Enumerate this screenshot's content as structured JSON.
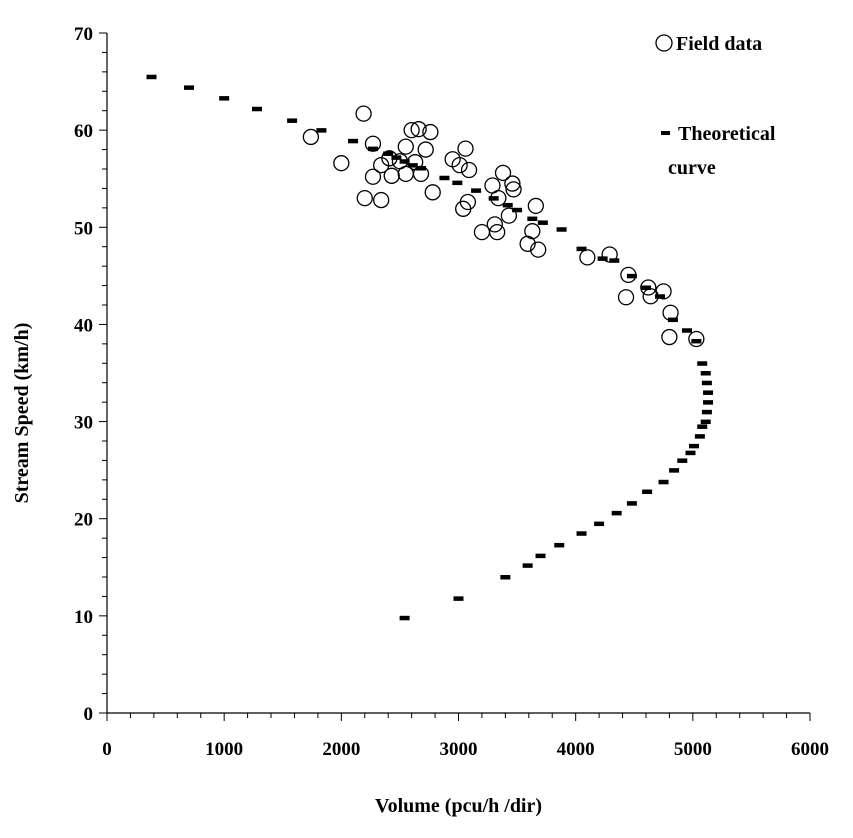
{
  "chart_data": {
    "type": "scatter",
    "xlabel": "Volume (pcu/h /dir)",
    "ylabel": "Stream Speed (km/h)",
    "xlim": [
      0,
      6000
    ],
    "ylim": [
      0,
      70
    ],
    "x_ticks": [
      0,
      1000,
      2000,
      3000,
      4000,
      5000,
      6000
    ],
    "y_ticks": [
      0,
      10,
      20,
      30,
      40,
      50,
      60,
      70
    ],
    "grid": false,
    "legend_position": "top-right",
    "series": [
      {
        "name": "Field data",
        "marker": "open-circle",
        "points": [
          [
            1740,
            59.3
          ],
          [
            2000,
            56.6
          ],
          [
            2190,
            61.7
          ],
          [
            2200,
            53.0
          ],
          [
            2270,
            55.2
          ],
          [
            2270,
            58.6
          ],
          [
            2340,
            52.8
          ],
          [
            2340,
            56.4
          ],
          [
            2410,
            57.1
          ],
          [
            2430,
            55.3
          ],
          [
            2500,
            56.8
          ],
          [
            2550,
            58.3
          ],
          [
            2550,
            55.5
          ],
          [
            2600,
            60.0
          ],
          [
            2630,
            56.7
          ],
          [
            2660,
            60.1
          ],
          [
            2680,
            55.5
          ],
          [
            2720,
            58.0
          ],
          [
            2760,
            59.8
          ],
          [
            2780,
            53.6
          ],
          [
            2950,
            57.0
          ],
          [
            3010,
            56.4
          ],
          [
            3040,
            51.9
          ],
          [
            3060,
            58.1
          ],
          [
            3080,
            52.6
          ],
          [
            3090,
            55.9
          ],
          [
            3200,
            49.5
          ],
          [
            3290,
            54.3
          ],
          [
            3310,
            50.3
          ],
          [
            3330,
            49.5
          ],
          [
            3340,
            53.0
          ],
          [
            3380,
            55.6
          ],
          [
            3430,
            51.2
          ],
          [
            3460,
            54.5
          ],
          [
            3470,
            53.9
          ],
          [
            3590,
            48.3
          ],
          [
            3630,
            49.6
          ],
          [
            3660,
            52.2
          ],
          [
            3680,
            47.7
          ],
          [
            4100,
            46.9
          ],
          [
            4290,
            47.2
          ],
          [
            4430,
            42.8
          ],
          [
            4450,
            45.1
          ],
          [
            4620,
            43.8
          ],
          [
            4640,
            42.9
          ],
          [
            4750,
            43.4
          ],
          [
            4800,
            38.7
          ],
          [
            4810,
            41.2
          ],
          [
            5030,
            38.5
          ]
        ]
      },
      {
        "name": "Theoretical curve",
        "marker": "dash",
        "points": [
          [
            380,
            65.5
          ],
          [
            700,
            64.4
          ],
          [
            1000,
            63.3
          ],
          [
            1280,
            62.2
          ],
          [
            1580,
            61.0
          ],
          [
            1830,
            60.0
          ],
          [
            2100,
            58.9
          ],
          [
            2270,
            58.1
          ],
          [
            2400,
            57.6
          ],
          [
            2470,
            57.2
          ],
          [
            2540,
            56.8
          ],
          [
            2610,
            56.4
          ],
          [
            2680,
            56.1
          ],
          [
            2880,
            55.1
          ],
          [
            2990,
            54.6
          ],
          [
            3150,
            53.8
          ],
          [
            3300,
            53.0
          ],
          [
            3420,
            52.3
          ],
          [
            3500,
            51.8
          ],
          [
            3630,
            50.9
          ],
          [
            3720,
            50.5
          ],
          [
            3880,
            49.8
          ],
          [
            4050,
            47.8
          ],
          [
            4230,
            46.8
          ],
          [
            4330,
            46.6
          ],
          [
            4480,
            45.0
          ],
          [
            4600,
            43.8
          ],
          [
            4720,
            42.9
          ],
          [
            4830,
            40.5
          ],
          [
            4950,
            39.4
          ],
          [
            5030,
            38.3
          ],
          [
            5080,
            36.0
          ],
          [
            5110,
            35.0
          ],
          [
            5120,
            34.0
          ],
          [
            5130,
            33.0
          ],
          [
            5130,
            32.0
          ],
          [
            5120,
            31.0
          ],
          [
            5110,
            30.0
          ],
          [
            5080,
            29.5
          ],
          [
            5060,
            28.5
          ],
          [
            5010,
            27.5
          ],
          [
            4980,
            26.8
          ],
          [
            4910,
            26.0
          ],
          [
            4840,
            25.0
          ],
          [
            4750,
            23.8
          ],
          [
            4610,
            22.8
          ],
          [
            4480,
            21.6
          ],
          [
            4350,
            20.6
          ],
          [
            4200,
            19.5
          ],
          [
            4050,
            18.5
          ],
          [
            3860,
            17.3
          ],
          [
            3700,
            16.2
          ],
          [
            3590,
            15.2
          ],
          [
            3400,
            14.0
          ],
          [
            3000,
            11.8
          ],
          [
            2540,
            9.8
          ]
        ]
      }
    ]
  }
}
